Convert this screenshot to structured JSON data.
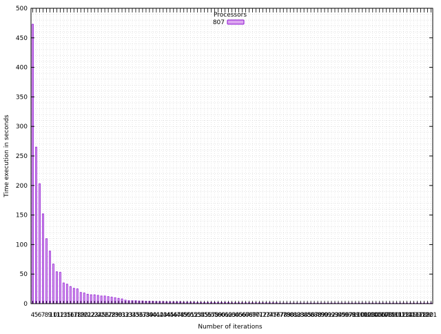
{
  "chart_data": {
    "type": "bar",
    "title": "",
    "xlabel": "Number of iterations",
    "ylabel": "Time execution in seconds",
    "ylim": [
      0,
      500
    ],
    "yticks": [
      0,
      50,
      100,
      150,
      200,
      250,
      300,
      350,
      400,
      450,
      500
    ],
    "grid": true,
    "legend": {
      "title": "Processors",
      "position": "top-center"
    },
    "series": [
      {
        "name": "807",
        "color": "#9a2fd6",
        "fill": "#dca6ef",
        "values": [
          473,
          265,
          203,
          152,
          110,
          89,
          67,
          54,
          53,
          35,
          33,
          29,
          26,
          25,
          19,
          18,
          16,
          15,
          15,
          14,
          13,
          13,
          12,
          11,
          10,
          9,
          8,
          6,
          5,
          5,
          5,
          4.5,
          4.5,
          4,
          4,
          4,
          3.5,
          3.5,
          3.5,
          3,
          3,
          3,
          3,
          3,
          2.5,
          2.5,
          2.5,
          2.5,
          2,
          2,
          2,
          2,
          2,
          2,
          2,
          2,
          2,
          2,
          1.5,
          1.5,
          1.5,
          1.5,
          1.5,
          1.5,
          1.5,
          1.5,
          1.5,
          1.5,
          1.5,
          1.5,
          1.5,
          1.5,
          1,
          1,
          1,
          1,
          1,
          1,
          1,
          1,
          1,
          1,
          1,
          1,
          1,
          1,
          1,
          1,
          1,
          1,
          1,
          1,
          1,
          1,
          1,
          1,
          1,
          1,
          1,
          1,
          1,
          1,
          1,
          1,
          1,
          1,
          1,
          1,
          1,
          1,
          1,
          1,
          1,
          1,
          1,
          1,
          1
        ]
      }
    ],
    "x_tick_labels_visible": [
      "4",
      "5",
      "6",
      "7",
      "8",
      "9",
      "10",
      "11",
      "12",
      "13",
      "15",
      "16",
      "17",
      "18",
      "19",
      "20",
      "21",
      "22",
      "23",
      "24",
      "25",
      "26",
      "27",
      "28",
      "29",
      "30",
      "31",
      "32",
      "33",
      "34",
      "35",
      "36",
      "37",
      "38",
      "39",
      "40",
      "41",
      "42",
      "43",
      "44",
      "45",
      "46",
      "47",
      "48",
      "49",
      "50",
      "51",
      "52",
      "53",
      "54",
      "55",
      "56",
      "57",
      "58",
      "59",
      "60",
      "61",
      "62",
      "63",
      "64",
      "65",
      "66",
      "67",
      "68",
      "69",
      "70",
      "71",
      "72",
      "73",
      "74",
      "75",
      "76",
      "77",
      "78",
      "79",
      "80",
      "81",
      "82",
      "83",
      "84",
      "85",
      "86",
      "87",
      "88",
      "89",
      "90",
      "91",
      "92",
      "93",
      "94",
      "95",
      "96",
      "97",
      "98",
      "99",
      "100",
      "101",
      "102",
      "103",
      "104",
      "105",
      "106",
      "107",
      "108",
      "109",
      "110",
      "111",
      "112",
      "113",
      "114",
      "115",
      "116",
      "117",
      "118",
      "119",
      "120",
      "121"
    ]
  }
}
